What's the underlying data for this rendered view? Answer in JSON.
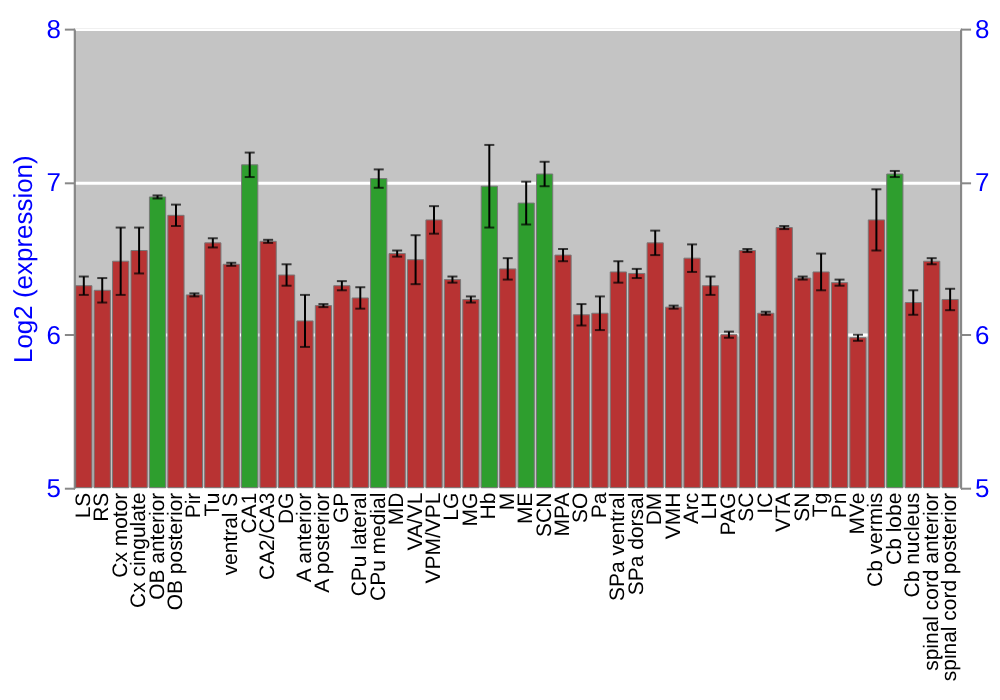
{
  "chart_data": {
    "type": "bar",
    "ylabel": "Log2 (expression)",
    "categories": [
      "LS",
      "RS",
      "Cx motor",
      "Cx cingulate",
      "OB anterior",
      "OB posterior",
      "Pir",
      "Tu",
      "ventral S",
      "CA1",
      "CA2/CA3",
      "DG",
      "A anterior",
      "A posterior",
      "GP",
      "CPu lateral",
      "CPu medial",
      "MD",
      "VA/VL",
      "VPM/VPL",
      "LG",
      "MG",
      "Hb",
      "M",
      "ME",
      "SCN",
      "MPA",
      "SO",
      "Pa",
      "SPa ventral",
      "SPa dorsal",
      "DM",
      "VMH",
      "Arc",
      "LH",
      "PAG",
      "SC",
      "IC",
      "VTA",
      "SN",
      "Tg",
      "Pn",
      "MVe",
      "Cb vermis",
      "Cb lobe",
      "Cb nucleus",
      "spinal cord anterior",
      "spinal cord posterior"
    ],
    "values": [
      6.32,
      6.29,
      6.48,
      6.55,
      6.9,
      6.78,
      6.26,
      6.6,
      6.46,
      7.11,
      6.61,
      6.39,
      6.09,
      6.19,
      6.32,
      6.24,
      7.02,
      6.53,
      6.49,
      6.75,
      6.36,
      6.23,
      6.97,
      6.43,
      6.86,
      7.05,
      6.52,
      6.13,
      6.14,
      6.41,
      6.4,
      6.6,
      6.18,
      6.5,
      6.32,
      6.0,
      6.55,
      6.14,
      6.7,
      6.37,
      6.41,
      6.34,
      5.98,
      6.75,
      7.05,
      6.21,
      6.48,
      6.23
    ],
    "errors": [
      0.06,
      0.08,
      0.22,
      0.15,
      0.01,
      0.07,
      0.01,
      0.03,
      0.01,
      0.08,
      0.01,
      0.07,
      0.17,
      0.01,
      0.03,
      0.07,
      0.06,
      0.02,
      0.16,
      0.09,
      0.02,
      0.02,
      0.27,
      0.07,
      0.14,
      0.08,
      0.04,
      0.07,
      0.11,
      0.07,
      0.03,
      0.08,
      0.01,
      0.09,
      0.06,
      0.02,
      0.01,
      0.01,
      0.01,
      0.01,
      0.12,
      0.02,
      0.02,
      0.2,
      0.02,
      0.08,
      0.02,
      0.07
    ],
    "colors": [
      "#b83333",
      "#b83333",
      "#b83333",
      "#b83333",
      "#2e9e2e",
      "#b83333",
      "#b83333",
      "#b83333",
      "#b83333",
      "#2e9e2e",
      "#b83333",
      "#b83333",
      "#b83333",
      "#b83333",
      "#b83333",
      "#b83333",
      "#2e9e2e",
      "#b83333",
      "#b83333",
      "#b83333",
      "#b83333",
      "#b83333",
      "#2e9e2e",
      "#b83333",
      "#2e9e2e",
      "#2e9e2e",
      "#b83333",
      "#b83333",
      "#b83333",
      "#b83333",
      "#b83333",
      "#b83333",
      "#b83333",
      "#b83333",
      "#b83333",
      "#b83333",
      "#b83333",
      "#b83333",
      "#b83333",
      "#b83333",
      "#b83333",
      "#b83333",
      "#b83333",
      "#b83333",
      "#2e9e2e",
      "#b83333",
      "#b83333",
      "#b83333"
    ],
    "ylim": [
      5,
      8
    ],
    "yticks": [
      5,
      6,
      7,
      8
    ],
    "y2lim": [
      5,
      8
    ],
    "y2ticks": [
      5,
      6,
      7,
      8
    ],
    "grid": "y"
  }
}
